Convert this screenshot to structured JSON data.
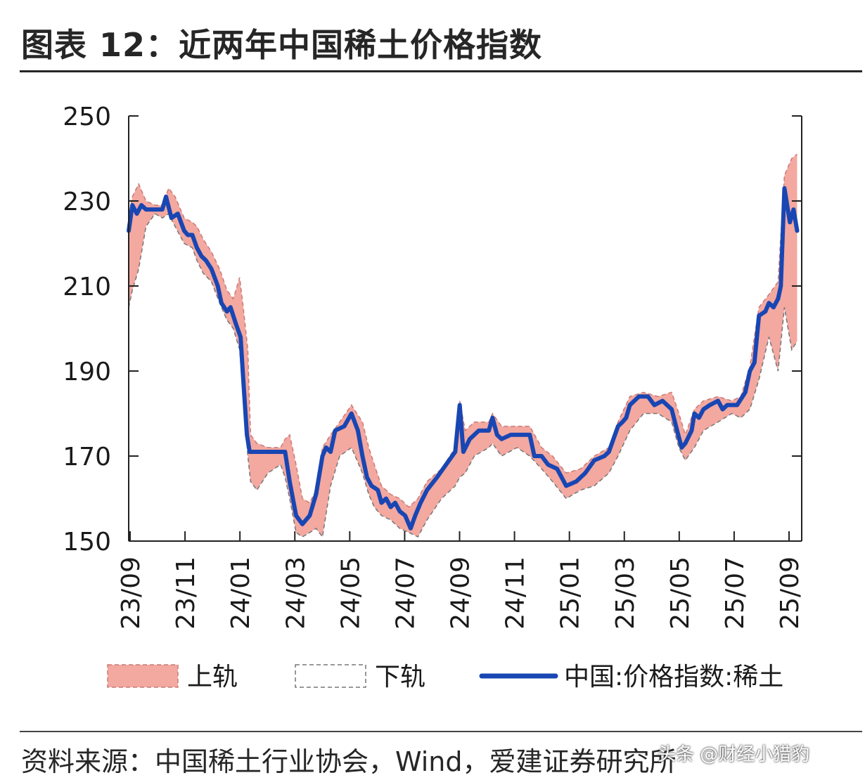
{
  "title": "图表 12：近两年中国稀土价格指数",
  "source": "资料来源：中国稀土行业协会，Wind，爱建证券研究所",
  "watermark": "头条 @财经小猎豹",
  "colors": {
    "band": "#f3a8a0",
    "band_edge": "#c87b78",
    "index_line": "#1846b3",
    "axis": "#222222"
  },
  "chart_data": {
    "type": "line",
    "title": "",
    "xlabel": "",
    "ylabel": "",
    "ylim": [
      150,
      250
    ],
    "yticks": [
      150,
      170,
      190,
      210,
      230,
      250
    ],
    "xticks": [
      "23/09",
      "23/11",
      "24/01",
      "24/03",
      "24/05",
      "24/07",
      "24/09",
      "24/11",
      "25/01",
      "25/03",
      "25/05",
      "25/07",
      "25/09"
    ],
    "grid": false,
    "legend_position": "bottom",
    "x_start": "2023-09-01",
    "series": [
      {
        "name": "中国:价格指数:稀土",
        "style": "line",
        "points": [
          [
            "2023-09-01",
            223
          ],
          [
            "2023-09-05",
            229
          ],
          [
            "2023-09-10",
            227
          ],
          [
            "2023-09-15",
            229
          ],
          [
            "2023-09-20",
            228
          ],
          [
            "2023-09-30",
            228
          ],
          [
            "2023-10-08",
            228
          ],
          [
            "2023-10-12",
            231
          ],
          [
            "2023-10-18",
            226
          ],
          [
            "2023-10-25",
            227
          ],
          [
            "2023-11-01",
            223
          ],
          [
            "2023-11-05",
            222
          ],
          [
            "2023-11-10",
            222
          ],
          [
            "2023-11-15",
            219
          ],
          [
            "2023-11-20",
            217
          ],
          [
            "2023-11-25",
            216
          ],
          [
            "2023-12-01",
            214
          ],
          [
            "2023-12-08",
            210
          ],
          [
            "2023-12-12",
            206
          ],
          [
            "2023-12-18",
            204
          ],
          [
            "2023-12-22",
            205
          ],
          [
            "2023-12-28",
            201
          ],
          [
            "2024-01-02",
            198
          ],
          [
            "2024-01-05",
            188
          ],
          [
            "2024-01-09",
            175
          ],
          [
            "2024-01-12",
            171
          ],
          [
            "2024-01-20",
            171
          ],
          [
            "2024-02-01",
            171
          ],
          [
            "2024-02-10",
            171
          ],
          [
            "2024-02-20",
            171
          ],
          [
            "2024-02-25",
            164
          ],
          [
            "2024-03-03",
            156
          ],
          [
            "2024-03-10",
            154
          ],
          [
            "2024-03-18",
            156
          ],
          [
            "2024-03-25",
            161
          ],
          [
            "2024-04-01",
            170
          ],
          [
            "2024-04-05",
            172
          ],
          [
            "2024-04-10",
            171
          ],
          [
            "2024-04-15",
            176
          ],
          [
            "2024-04-25",
            177
          ],
          [
            "2024-05-03",
            180
          ],
          [
            "2024-05-10",
            176
          ],
          [
            "2024-05-15",
            170
          ],
          [
            "2024-05-20",
            165
          ],
          [
            "2024-05-25",
            163
          ],
          [
            "2024-06-01",
            162
          ],
          [
            "2024-06-05",
            159
          ],
          [
            "2024-06-10",
            160
          ],
          [
            "2024-06-15",
            158
          ],
          [
            "2024-06-20",
            159
          ],
          [
            "2024-06-25",
            157
          ],
          [
            "2024-07-01",
            156
          ],
          [
            "2024-07-07",
            153
          ],
          [
            "2024-07-12",
            156
          ],
          [
            "2024-07-18",
            159
          ],
          [
            "2024-07-25",
            162
          ],
          [
            "2024-08-05",
            165
          ],
          [
            "2024-08-15",
            168
          ],
          [
            "2024-08-25",
            171
          ],
          [
            "2024-08-30",
            182
          ],
          [
            "2024-09-03",
            171
          ],
          [
            "2024-09-10",
            174
          ],
          [
            "2024-09-20",
            176
          ],
          [
            "2024-10-01",
            176
          ],
          [
            "2024-10-05",
            179
          ],
          [
            "2024-10-10",
            175
          ],
          [
            "2024-10-15",
            174
          ],
          [
            "2024-10-25",
            175
          ],
          [
            "2024-11-05",
            175
          ],
          [
            "2024-11-15",
            175
          ],
          [
            "2024-11-20",
            170
          ],
          [
            "2024-11-28",
            170
          ],
          [
            "2024-12-05",
            168
          ],
          [
            "2024-12-15",
            167
          ],
          [
            "2024-12-25",
            163
          ],
          [
            "2025-01-05",
            164
          ],
          [
            "2025-01-15",
            166
          ],
          [
            "2025-01-25",
            169
          ],
          [
            "2025-02-05",
            170
          ],
          [
            "2025-02-10",
            171
          ],
          [
            "2025-02-15",
            174
          ],
          [
            "2025-02-20",
            177
          ],
          [
            "2025-02-25",
            178
          ],
          [
            "2025-03-01",
            179
          ],
          [
            "2025-03-05",
            182
          ],
          [
            "2025-03-15",
            184
          ],
          [
            "2025-03-25",
            184
          ],
          [
            "2025-04-01",
            182
          ],
          [
            "2025-04-10",
            183
          ],
          [
            "2025-04-20",
            181
          ],
          [
            "2025-04-26",
            176
          ],
          [
            "2025-05-01",
            172
          ],
          [
            "2025-05-05",
            173
          ],
          [
            "2025-05-12",
            176
          ],
          [
            "2025-05-15",
            180
          ],
          [
            "2025-05-20",
            179
          ],
          [
            "2025-05-25",
            181
          ],
          [
            "2025-06-01",
            182
          ],
          [
            "2025-06-10",
            183
          ],
          [
            "2025-06-15",
            181
          ],
          [
            "2025-06-20",
            182
          ],
          [
            "2025-07-01",
            182
          ],
          [
            "2025-07-10",
            185
          ],
          [
            "2025-07-15",
            190
          ],
          [
            "2025-07-20",
            192
          ],
          [
            "2025-07-25",
            203
          ],
          [
            "2025-08-01",
            204
          ],
          [
            "2025-08-05",
            206
          ],
          [
            "2025-08-10",
            205
          ],
          [
            "2025-08-15",
            207
          ],
          [
            "2025-08-18",
            210
          ],
          [
            "2025-08-22",
            233
          ],
          [
            "2025-08-25",
            229
          ],
          [
            "2025-08-28",
            225
          ],
          [
            "2025-09-01",
            228
          ],
          [
            "2025-09-05",
            223
          ]
        ]
      },
      {
        "name": "上轨",
        "style": "band-upper",
        "points": [
          [
            "2023-09-01",
            226
          ],
          [
            "2023-09-05",
            231
          ],
          [
            "2023-09-12",
            234
          ],
          [
            "2023-09-20",
            230
          ],
          [
            "2023-09-30",
            229
          ],
          [
            "2023-10-08",
            229
          ],
          [
            "2023-10-15",
            233
          ],
          [
            "2023-10-22",
            231
          ],
          [
            "2023-11-01",
            226
          ],
          [
            "2023-11-10",
            225
          ],
          [
            "2023-11-15",
            224
          ],
          [
            "2023-11-22",
            221
          ],
          [
            "2023-12-01",
            218
          ],
          [
            "2023-12-10",
            214
          ],
          [
            "2023-12-18",
            209
          ],
          [
            "2023-12-25",
            207
          ],
          [
            "2024-01-01",
            212
          ],
          [
            "2024-01-05",
            205
          ],
          [
            "2024-01-10",
            195
          ],
          [
            "2024-01-13",
            175
          ],
          [
            "2024-01-20",
            173
          ],
          [
            "2024-02-01",
            172
          ],
          [
            "2024-02-15",
            172
          ],
          [
            "2024-02-20",
            174
          ],
          [
            "2024-02-25",
            175
          ],
          [
            "2024-03-03",
            168
          ],
          [
            "2024-03-10",
            160
          ],
          [
            "2024-03-18",
            159
          ],
          [
            "2024-03-25",
            162
          ],
          [
            "2024-04-01",
            172
          ],
          [
            "2024-04-10",
            175
          ],
          [
            "2024-04-20",
            178
          ],
          [
            "2024-05-03",
            182
          ],
          [
            "2024-05-15",
            178
          ],
          [
            "2024-05-22",
            172
          ],
          [
            "2024-05-28",
            168
          ],
          [
            "2024-06-05",
            163
          ],
          [
            "2024-06-15",
            161
          ],
          [
            "2024-06-25",
            160
          ],
          [
            "2024-07-05",
            158
          ],
          [
            "2024-07-15",
            160
          ],
          [
            "2024-07-25",
            164
          ],
          [
            "2024-08-10",
            167
          ],
          [
            "2024-08-25",
            172
          ],
          [
            "2024-08-30",
            183
          ],
          [
            "2024-09-05",
            176
          ],
          [
            "2024-09-15",
            178
          ],
          [
            "2024-10-01",
            178
          ],
          [
            "2024-10-05",
            180
          ],
          [
            "2024-10-15",
            177
          ],
          [
            "2024-11-01",
            177
          ],
          [
            "2024-11-15",
            177
          ],
          [
            "2024-11-28",
            172
          ],
          [
            "2024-12-10",
            170
          ],
          [
            "2024-12-25",
            166
          ],
          [
            "2025-01-10",
            167
          ],
          [
            "2025-01-25",
            170
          ],
          [
            "2025-02-10",
            172
          ],
          [
            "2025-02-20",
            178
          ],
          [
            "2025-03-05",
            184
          ],
          [
            "2025-03-20",
            185
          ],
          [
            "2025-04-05",
            184
          ],
          [
            "2025-04-20",
            185
          ],
          [
            "2025-04-28",
            180
          ],
          [
            "2025-05-05",
            175
          ],
          [
            "2025-05-15",
            181
          ],
          [
            "2025-05-25",
            183
          ],
          [
            "2025-06-10",
            184
          ],
          [
            "2025-06-25",
            183
          ],
          [
            "2025-07-05",
            184
          ],
          [
            "2025-07-15",
            191
          ],
          [
            "2025-07-25",
            205
          ],
          [
            "2025-08-05",
            208
          ],
          [
            "2025-08-15",
            211
          ],
          [
            "2025-08-22",
            236
          ],
          [
            "2025-08-30",
            240
          ],
          [
            "2025-09-05",
            241
          ]
        ]
      },
      {
        "name": "下轨",
        "style": "band-lower",
        "points": [
          [
            "2023-09-01",
            205
          ],
          [
            "2023-09-05",
            209
          ],
          [
            "2023-09-12",
            214
          ],
          [
            "2023-09-20",
            224
          ],
          [
            "2023-09-30",
            227
          ],
          [
            "2023-10-08",
            226
          ],
          [
            "2023-10-15",
            227
          ],
          [
            "2023-10-22",
            224
          ],
          [
            "2023-11-01",
            220
          ],
          [
            "2023-11-10",
            219
          ],
          [
            "2023-11-15",
            216
          ],
          [
            "2023-11-22",
            213
          ],
          [
            "2023-12-01",
            211
          ],
          [
            "2023-12-10",
            206
          ],
          [
            "2023-12-18",
            202
          ],
          [
            "2023-12-25",
            200
          ],
          [
            "2024-01-01",
            195
          ],
          [
            "2024-01-05",
            184
          ],
          [
            "2024-01-10",
            170
          ],
          [
            "2024-01-13",
            164
          ],
          [
            "2024-01-20",
            162
          ],
          [
            "2024-02-01",
            166
          ],
          [
            "2024-02-15",
            168
          ],
          [
            "2024-02-20",
            165
          ],
          [
            "2024-02-25",
            160
          ],
          [
            "2024-03-03",
            152
          ],
          [
            "2024-03-10",
            151
          ],
          [
            "2024-03-18",
            152
          ],
          [
            "2024-03-25",
            153
          ],
          [
            "2024-04-01",
            151
          ],
          [
            "2024-04-10",
            163
          ],
          [
            "2024-04-20",
            170
          ],
          [
            "2024-05-03",
            172
          ],
          [
            "2024-05-15",
            166
          ],
          [
            "2024-05-22",
            161
          ],
          [
            "2024-05-28",
            158
          ],
          [
            "2024-06-05",
            156
          ],
          [
            "2024-06-15",
            155
          ],
          [
            "2024-06-25",
            153
          ],
          [
            "2024-07-05",
            152
          ],
          [
            "2024-07-15",
            151
          ],
          [
            "2024-07-25",
            155
          ],
          [
            "2024-08-10",
            160
          ],
          [
            "2024-08-25",
            163
          ],
          [
            "2024-08-30",
            165
          ],
          [
            "2024-09-05",
            166
          ],
          [
            "2024-09-15",
            170
          ],
          [
            "2024-10-01",
            172
          ],
          [
            "2024-10-05",
            173
          ],
          [
            "2024-10-15",
            170
          ],
          [
            "2024-11-01",
            172
          ],
          [
            "2024-11-15",
            170
          ],
          [
            "2024-11-28",
            167
          ],
          [
            "2024-12-10",
            164
          ],
          [
            "2024-12-25",
            160
          ],
          [
            "2025-01-10",
            162
          ],
          [
            "2025-01-25",
            163
          ],
          [
            "2025-02-10",
            166
          ],
          [
            "2025-02-20",
            170
          ],
          [
            "2025-03-05",
            176
          ],
          [
            "2025-03-20",
            180
          ],
          [
            "2025-04-05",
            180
          ],
          [
            "2025-04-20",
            178
          ],
          [
            "2025-04-28",
            172
          ],
          [
            "2025-05-05",
            169
          ],
          [
            "2025-05-15",
            172
          ],
          [
            "2025-05-25",
            176
          ],
          [
            "2025-06-10",
            178
          ],
          [
            "2025-06-25",
            180
          ],
          [
            "2025-07-05",
            179
          ],
          [
            "2025-07-15",
            181
          ],
          [
            "2025-07-25",
            188
          ],
          [
            "2025-08-05",
            198
          ],
          [
            "2025-08-15",
            190
          ],
          [
            "2025-08-22",
            205
          ],
          [
            "2025-08-30",
            195
          ],
          [
            "2025-09-05",
            197
          ]
        ]
      }
    ]
  }
}
